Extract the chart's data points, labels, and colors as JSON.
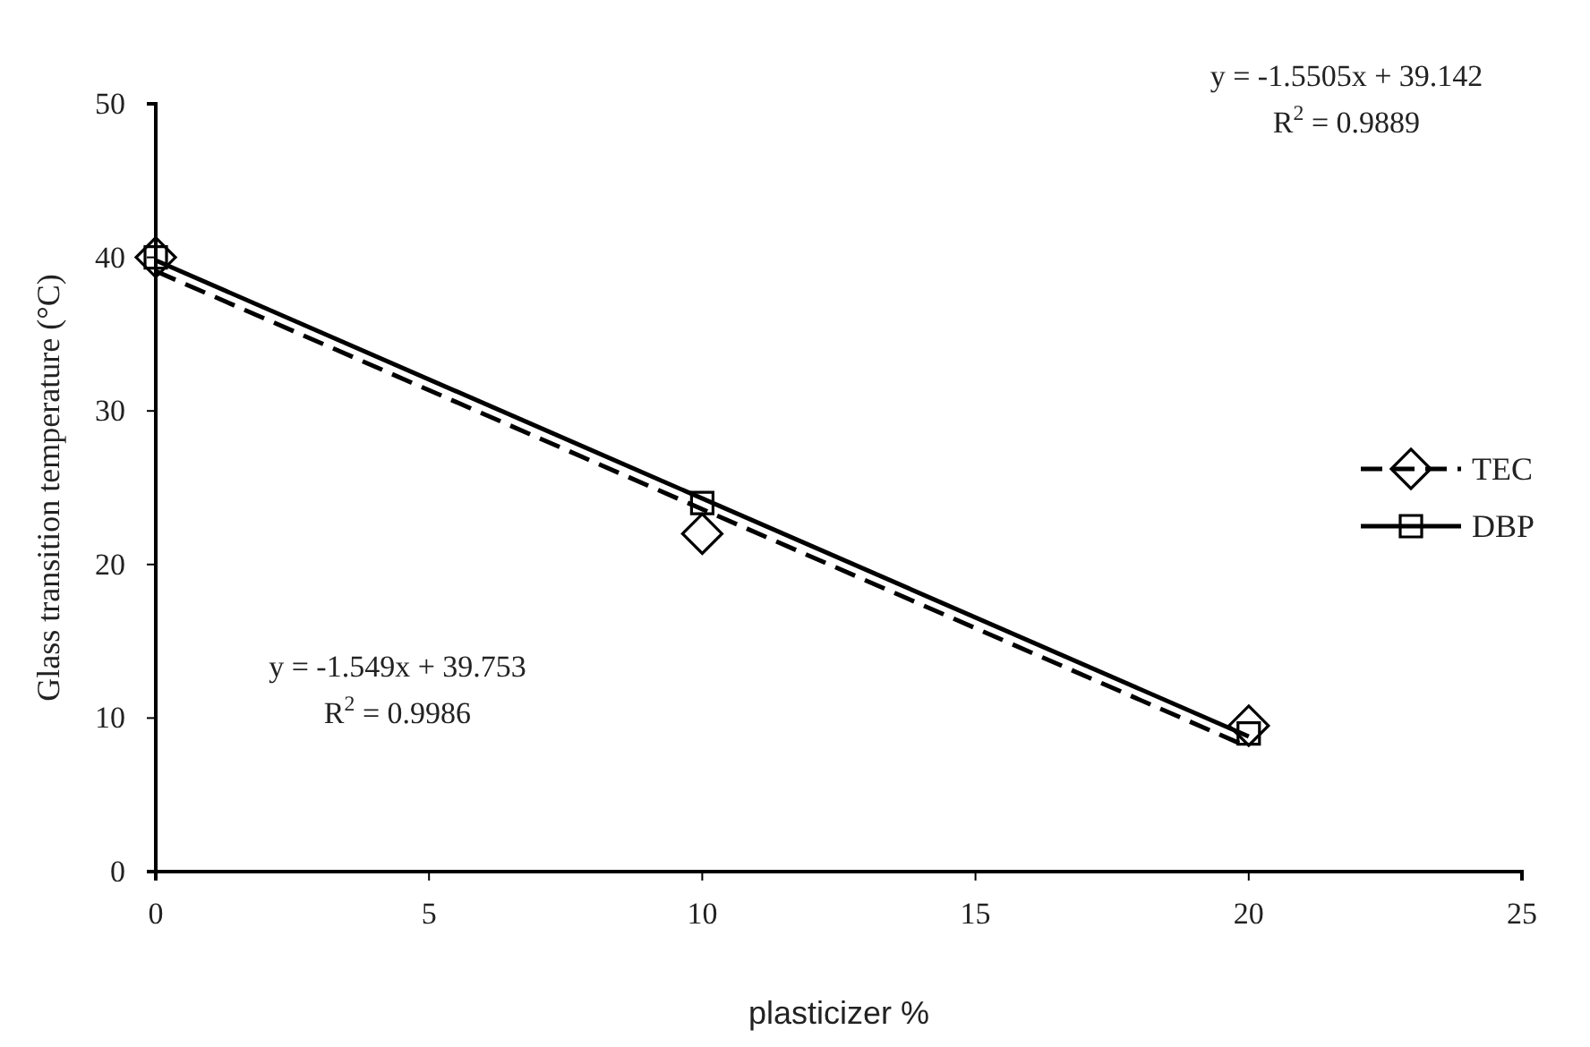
{
  "chart_data": {
    "type": "scatter",
    "xlabel": "plasticizer %",
    "ylabel": "Glass transition temperature (°C)",
    "xlim": [
      0,
      25
    ],
    "xticks": [
      0,
      5,
      10,
      15,
      20,
      25
    ],
    "ylim": [
      0,
      50
    ],
    "yticks": [
      0,
      10,
      20,
      30,
      40,
      50
    ],
    "series": [
      {
        "name": "TEC",
        "color": "#000000",
        "marker": "diamond",
        "line_style": "dashed",
        "x": [
          0,
          10,
          20
        ],
        "values": [
          40,
          22,
          9.5
        ]
      },
      {
        "name": "DBP",
        "color": "#000000",
        "marker": "square",
        "line_style": "solid",
        "x": [
          0,
          10,
          20
        ],
        "values": [
          40,
          24,
          9
        ]
      },
      {
        "type": "line",
        "color": "#000000",
        "line_style": "dashed",
        "x": [
          0,
          20
        ],
        "values": [
          39.1,
          8.1
        ]
      },
      {
        "type": "line",
        "color": "#000000",
        "line_style": "solid",
        "x": [
          0,
          20
        ],
        "values": [
          39.8,
          8.8
        ]
      }
    ],
    "annotations": [
      "y = -1.5505x + 39.142",
      "R$^{2}$ = 0.9889",
      "y = -1.549x + 39.753",
      "R$^{2}$ = 0.9986"
    ],
    "legend": "right",
    "grid": false
  }
}
